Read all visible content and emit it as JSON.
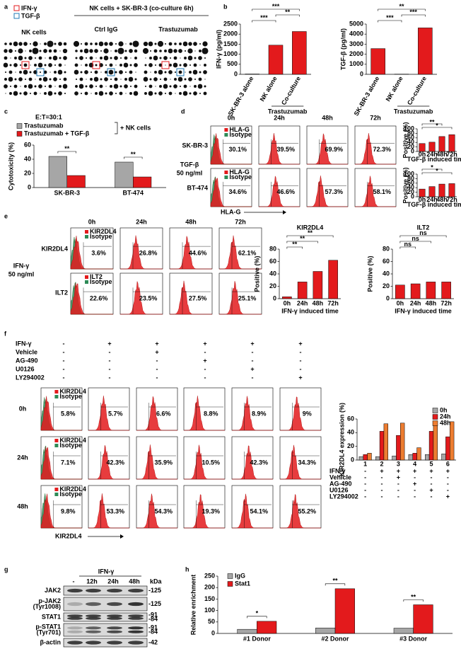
{
  "panel_labels": [
    "a",
    "b",
    "c",
    "d",
    "e",
    "f",
    "g",
    "h"
  ],
  "panel_a": {
    "legend": [
      {
        "name": "IFN-γ",
        "color": "#e31a1c"
      },
      {
        "name": "TGF-β",
        "color": "#1f78b4"
      }
    ],
    "header": "NK cells + SK-BR-3 (co-culture 6h)",
    "blots": [
      "NK cells",
      "Ctrl IgG",
      "Trastuzumab"
    ]
  },
  "chart_data": [
    {
      "type": "bar",
      "y_label": "IFN-γ (pg/ml)",
      "categories": [
        "SK-BR-3 alone",
        "NK alone",
        "Co-culture"
      ],
      "values": [
        15,
        1450,
        2130
      ],
      "color": "#e31a1c",
      "ylim": [
        0,
        2500
      ],
      "yticks": [
        0,
        500,
        1000,
        1500,
        2000,
        2500
      ],
      "annotations": [
        "***",
        "**",
        "***"
      ],
      "group_label": "Trastuzumab"
    },
    {
      "type": "bar",
      "y_label": "TGF-β (pg/ml)",
      "categories": [
        "SK-BR-3 alone",
        "NK alone",
        "Co-culture"
      ],
      "values": [
        2560,
        20,
        4620
      ],
      "color": "#e31a1c",
      "ylim": [
        0,
        5000
      ],
      "yticks": [
        0,
        1000,
        2000,
        3000,
        4000,
        5000
      ],
      "annotations": [
        "***",
        "***",
        "**"
      ],
      "group_label": "Trastuzumab"
    },
    {
      "type": "bar",
      "y_label": "Cytotoxicity (%)",
      "categories": [
        "SK-BR-3",
        "BT-474"
      ],
      "series": [
        {
          "name": "Trastuzumab",
          "color": "#a6a6a6",
          "values": [
            44,
            36
          ]
        },
        {
          "name": "Trastuzumab + TGF-β",
          "color": "#e31a1c",
          "values": [
            17,
            15
          ]
        }
      ],
      "ylim": [
        0,
        60
      ],
      "yticks": [
        0,
        20,
        40,
        60
      ],
      "annotations": [
        "**",
        "**"
      ],
      "note": "E:T=30:1",
      "legend_note": "+ NK cells"
    },
    {
      "type": "bar",
      "y_label": "Positive (%)",
      "x_label": "TGF-β induced time",
      "categories": [
        "0h",
        "24h",
        "48h",
        "72h"
      ],
      "values": [
        35,
        41,
        66,
        74
      ],
      "color": "#e31a1c",
      "ylim": [
        0,
        100
      ],
      "yticks": [
        0,
        20,
        40,
        60,
        80,
        100
      ],
      "annotations": [
        "*",
        "**"
      ]
    },
    {
      "type": "bar",
      "y_label": "Positive (%)",
      "x_label": "TGF-β induced time",
      "categories": [
        "0h",
        "24h",
        "48h",
        "72h"
      ],
      "values": [
        34,
        45,
        56,
        58
      ],
      "color": "#e31a1c",
      "ylim": [
        0,
        100
      ],
      "yticks": [
        0,
        20,
        40,
        60,
        80,
        100
      ],
      "annotations": [
        "*",
        "*"
      ]
    },
    {
      "type": "bar",
      "title": "KIR2DL4",
      "y_label": "Positive (%)",
      "x_label": "IFN-γ induced time",
      "categories": [
        "0h",
        "24h",
        "48h",
        "72h"
      ],
      "values": [
        3,
        27,
        44,
        62
      ],
      "color": "#e31a1c",
      "ylim": [
        0,
        80
      ],
      "yticks": [
        0,
        20,
        40,
        60,
        80
      ],
      "annotations": [
        "**",
        "**",
        "**"
      ]
    },
    {
      "type": "bar",
      "title": "ILT2",
      "y_label": "Positive (%)",
      "x_label": "IFN-γ induced time",
      "categories": [
        "0h",
        "24h",
        "48h",
        "72h"
      ],
      "values": [
        22,
        24,
        27,
        27
      ],
      "color": "#e31a1c",
      "ylim": [
        0,
        80
      ],
      "yticks": [
        0,
        20,
        40,
        60,
        80
      ],
      "annotations": [
        "ns",
        "ns",
        "ns"
      ]
    },
    {
      "type": "bar",
      "y_label": "KIR2DL4 expression (%)",
      "categories": [
        "1",
        "2",
        "3",
        "4",
        "5",
        "6"
      ],
      "series": [
        {
          "name": "0h",
          "color": "#a6a6a6",
          "values": [
            5,
            5,
            6,
            8,
            8,
            9
          ]
        },
        {
          "name": "24h",
          "color": "#e31a1c",
          "values": [
            8,
            42,
            36,
            10,
            42,
            34
          ]
        },
        {
          "name": "48h",
          "color": "#ed7d31",
          "values": [
            10,
            53,
            54,
            18,
            53,
            56
          ]
        }
      ],
      "ylim": [
        0,
        60
      ],
      "yticks": [
        0,
        20,
        40,
        60
      ]
    },
    {
      "type": "bar",
      "y_label": "Relative enrichment",
      "categories": [
        "#1 Donor",
        "#2 Donor",
        "#3 Donor"
      ],
      "series": [
        {
          "name": "IgG",
          "color": "#a6a6a6",
          "values": [
            18,
            24,
            23
          ]
        },
        {
          "name": "Stat1",
          "color": "#e31a1c",
          "values": [
            53,
            195,
            125
          ]
        }
      ],
      "ylim": [
        0,
        250
      ],
      "yticks": [
        0,
        50,
        100,
        150,
        200,
        250
      ],
      "annotations": [
        "*",
        "**",
        "**"
      ]
    }
  ],
  "panel_d": {
    "times": [
      "0h",
      "24h",
      "48h",
      "72h"
    ],
    "treatment": [
      "TGF-β",
      "50 ng/ml"
    ],
    "axis": "HLA-G",
    "rows": [
      {
        "name": "SK-BR-3",
        "legend": [
          "HLA-G",
          "Isotype"
        ],
        "percents": [
          "30.1%",
          "39.5%",
          "69.9%",
          "72.3%"
        ]
      },
      {
        "name": "BT-474",
        "legend": [
          "HLA-G",
          "Isotype"
        ],
        "percents": [
          "34.6%",
          "46.6%",
          "57.3%",
          "58.1%"
        ]
      }
    ]
  },
  "panel_e": {
    "times": [
      "0h",
      "24h",
      "48h",
      "72h"
    ],
    "treatment": [
      "IFN-γ",
      "50 ng/ml"
    ],
    "rows": [
      {
        "name": "KIR2DL4",
        "legend": [
          "KIR2DL4",
          "Isotype"
        ],
        "percents": [
          "3.6%",
          "26.8%",
          "44.6%",
          "62.1%"
        ]
      },
      {
        "name": "ILT2",
        "legend": [
          "ILT2",
          "Isotype"
        ],
        "percents": [
          "22.6%",
          "23.5%",
          "27.5%",
          "25.1%"
        ]
      }
    ]
  },
  "panel_f": {
    "treatments": [
      {
        "name": "IFN-γ",
        "signs": [
          "-",
          "+",
          "+",
          "+",
          "+",
          "+"
        ]
      },
      {
        "name": "Vehicle",
        "signs": [
          "-",
          "-",
          "+",
          "-",
          "-",
          "-"
        ]
      },
      {
        "name": "AG-490",
        "signs": [
          "-",
          "-",
          "-",
          "+",
          "-",
          "-"
        ]
      },
      {
        "name": "U0126",
        "signs": [
          "-",
          "-",
          "-",
          "-",
          "+",
          "-"
        ]
      },
      {
        "name": "LY294002",
        "signs": [
          "-",
          "-",
          "-",
          "-",
          "-",
          "+"
        ]
      }
    ],
    "axis": "KIR2DL4",
    "rows": [
      {
        "name": "0h",
        "legend": [
          "KIR2DL4",
          "Isotype"
        ],
        "percents": [
          "5.8%",
          "5.7%",
          "6.6%",
          "8.8%",
          "8.9%",
          "9%"
        ]
      },
      {
        "name": "24h",
        "legend": [
          "KIR2DL4",
          "Isotype"
        ],
        "percents": [
          "7.1%",
          "42.3%",
          "35.9%",
          "10.5%",
          "42.3%",
          "34.3%"
        ]
      },
      {
        "name": "48h",
        "legend": [
          "KIR2DL4",
          "Isotype"
        ],
        "percents": [
          "9.8%",
          "53.3%",
          "54.3%",
          "19.3%",
          "54.1%",
          "55.2%"
        ]
      }
    ]
  },
  "panel_g": {
    "treatment": "IFN-γ",
    "lanes": [
      "-",
      "12h",
      "24h",
      "48h"
    ],
    "kda_label": "kDa",
    "rows": [
      {
        "name": [
          "JAK2"
        ],
        "kda": [
          "-125"
        ]
      },
      {
        "name": [
          "p-JAK2",
          "(Tyr1008)"
        ],
        "kda": [
          "-125"
        ]
      },
      {
        "name": [
          "STAT1"
        ],
        "kda": [
          "-91",
          "-84"
        ]
      },
      {
        "name": [
          "p-STAT1",
          "(Tyr701)"
        ],
        "kda": [
          "-91",
          "-84"
        ]
      },
      {
        "name": [
          "β-actin"
        ],
        "kda": [
          "-42"
        ]
      }
    ]
  }
}
